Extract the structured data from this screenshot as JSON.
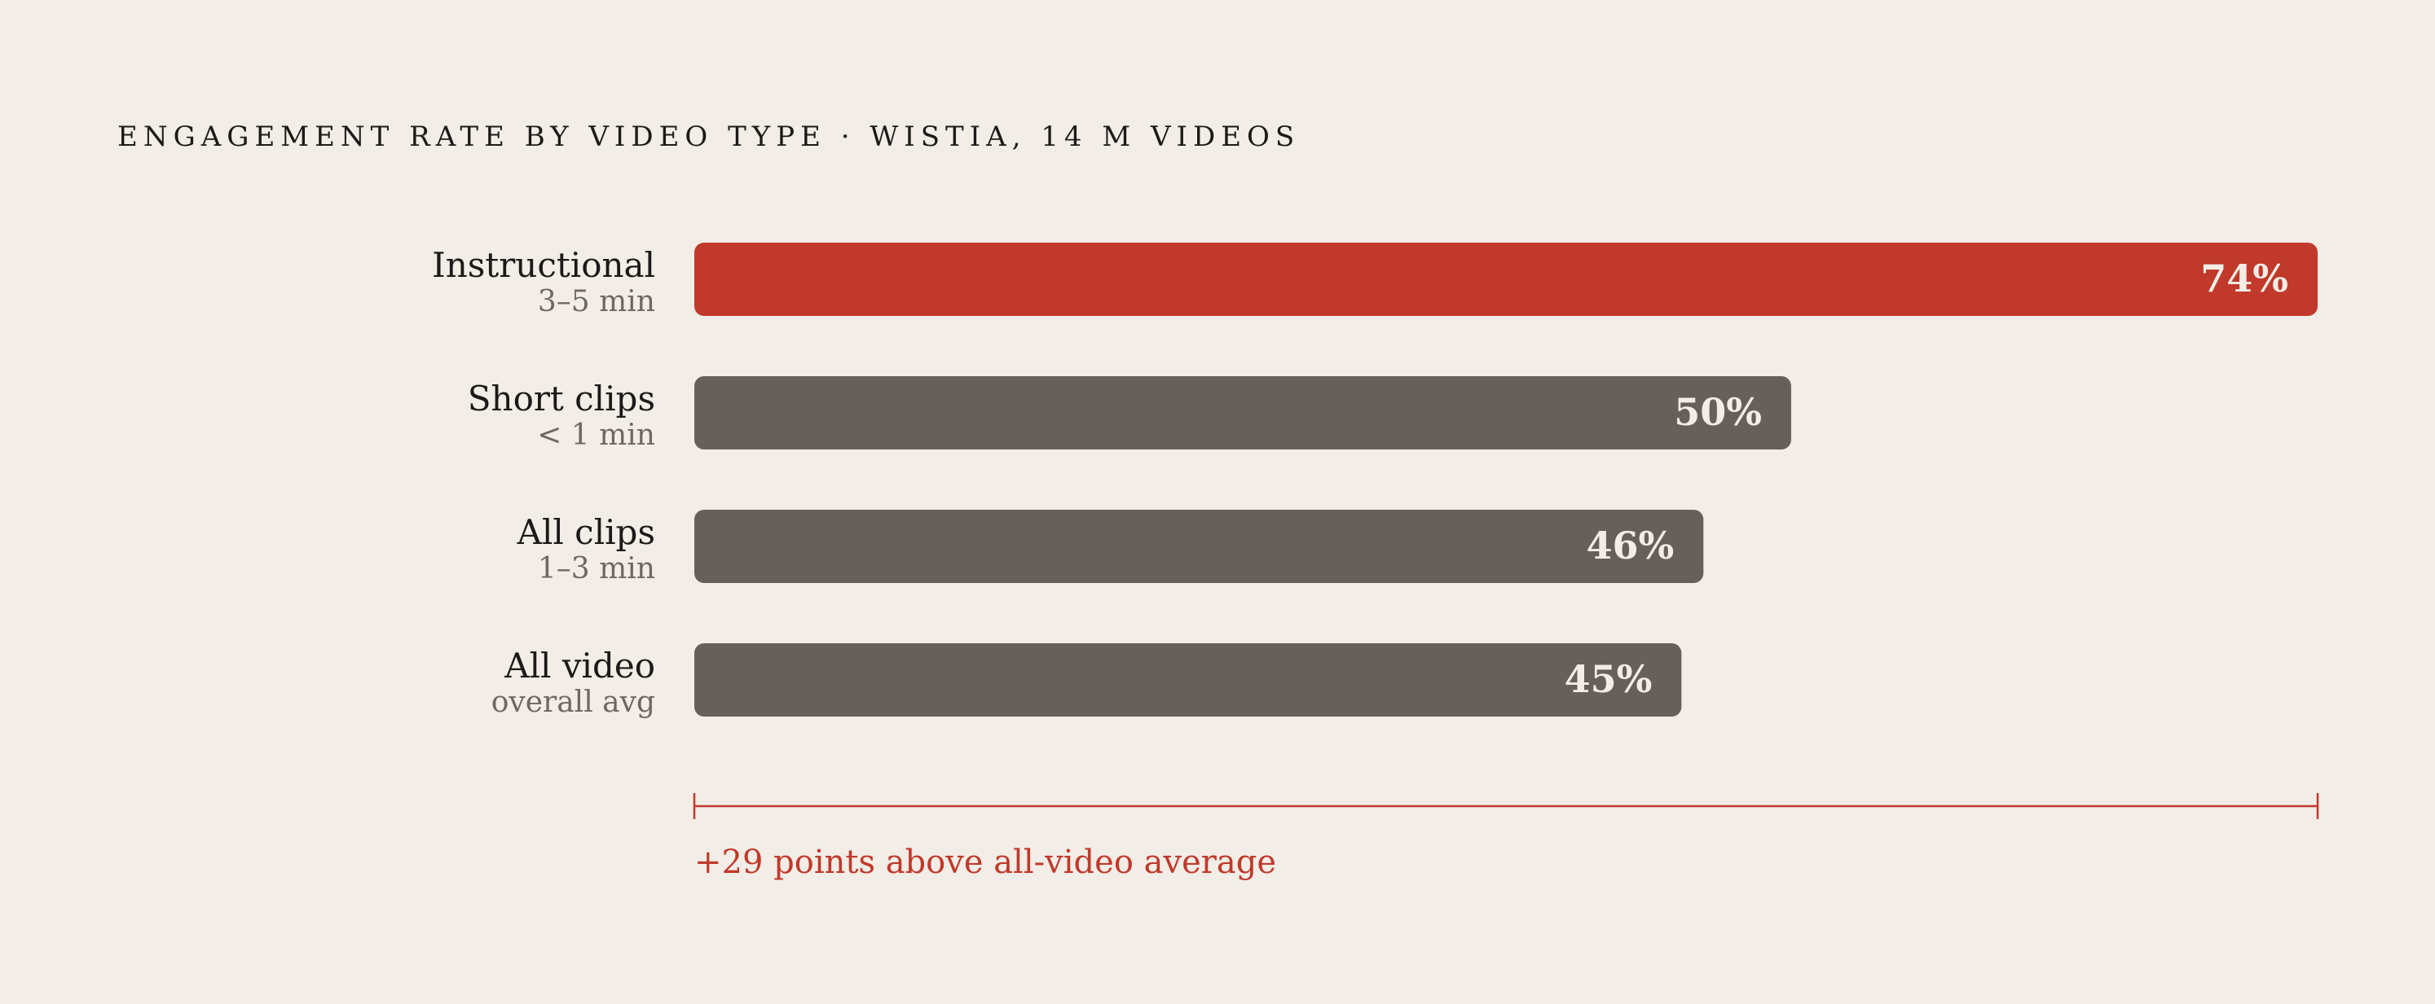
{
  "chart_data": {
    "type": "bar",
    "orientation": "horizontal",
    "title": "ENGAGEMENT RATE BY VIDEO TYPE · WISTIA, 14 M VIDEOS",
    "xlabel": "",
    "ylabel": "",
    "xlim": [
      0,
      74
    ],
    "grid": false,
    "legend": "none",
    "categories": [
      {
        "label": "Instructional",
        "sublabel": "3–5 min"
      },
      {
        "label": "Short clips",
        "sublabel": "< 1 min"
      },
      {
        "label": "All clips",
        "sublabel": "1–3 min"
      },
      {
        "label": "All video",
        "sublabel": "overall avg"
      }
    ],
    "values": [
      74,
      50,
      46,
      45
    ],
    "value_labels": [
      "74%",
      "50%",
      "46%",
      "45%"
    ],
    "highlight_index": 0,
    "annotation": "+29 points above all-video average",
    "colors": {
      "highlight": "#c0392b",
      "default": "#67605a",
      "label": "#1c1a18",
      "sublabel": "#6e6862",
      "value_text": "#f2ede6",
      "annotation": "#c0392b",
      "background": "#f2ede6"
    }
  }
}
